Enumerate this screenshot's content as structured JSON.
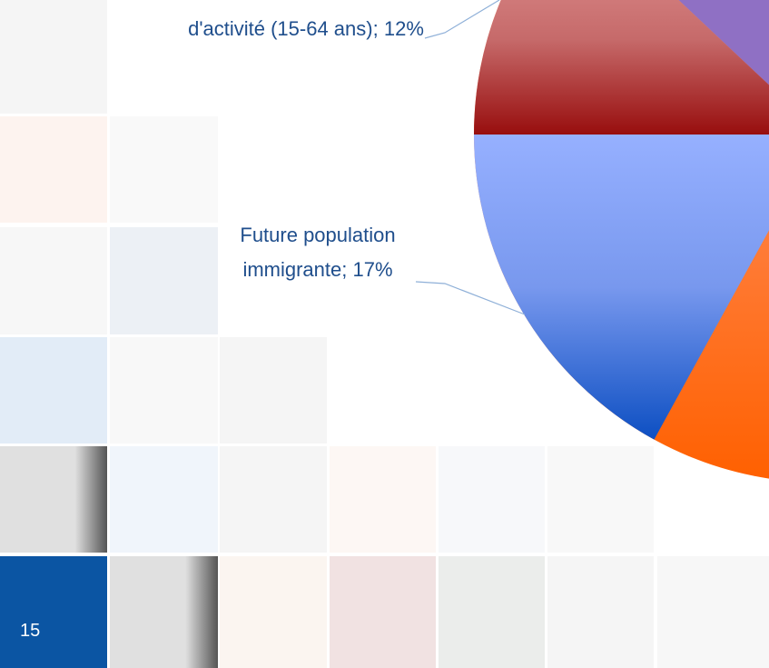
{
  "chart_data": {
    "type": "pie",
    "categories": [
      "d'activité (15-64 ans)",
      "Future population immigrante"
    ],
    "values": [
      12,
      17
    ],
    "value_labels": [
      "12%",
      "17%"
    ],
    "label_separator": ";",
    "colors": [
      "#b02a2a",
      "#5b82e0"
    ]
  },
  "page_number": "15"
}
